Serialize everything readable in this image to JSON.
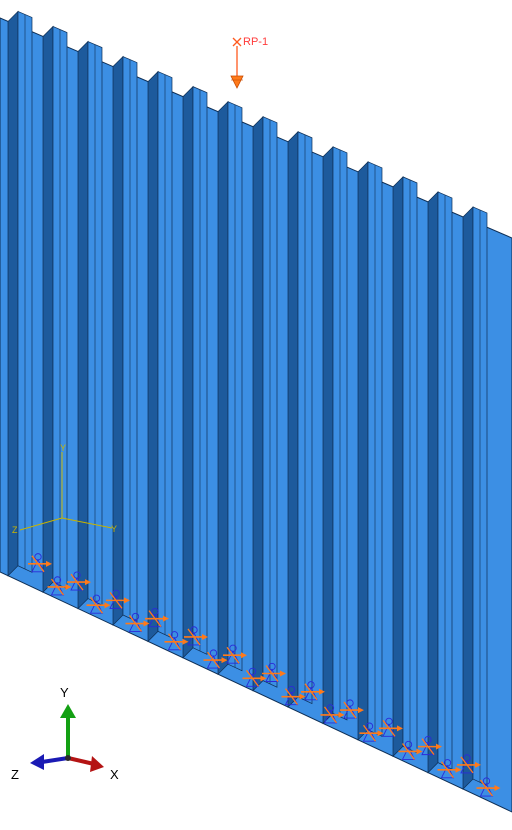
{
  "viewport": {
    "background": "#ffffff",
    "panel_color": "#3c8fe4",
    "panel_dark": "#1d5a9c",
    "panel_edge": "#0d2e55",
    "stiffener_count": 14
  },
  "reference_point": {
    "label": "RP-1",
    "color": "#ff5a1e",
    "icon": "reference-point-cross-icon"
  },
  "local_csys": {
    "labels": {
      "y": "Y",
      "z": "Z",
      "x": "Y"
    },
    "color": "#c8b400"
  },
  "boundary_conditions": {
    "symbol_color": "#2b2bd8",
    "arrow_color": "#ff7a1a",
    "icon": "encastre-bc-icon"
  },
  "view_triad": {
    "labels": {
      "y": "Y",
      "z": "Z",
      "x": "X"
    },
    "colors": {
      "y": "#13a013",
      "z": "#1a1ab4",
      "x": "#b41414"
    },
    "icon": "view-triad-icon"
  }
}
